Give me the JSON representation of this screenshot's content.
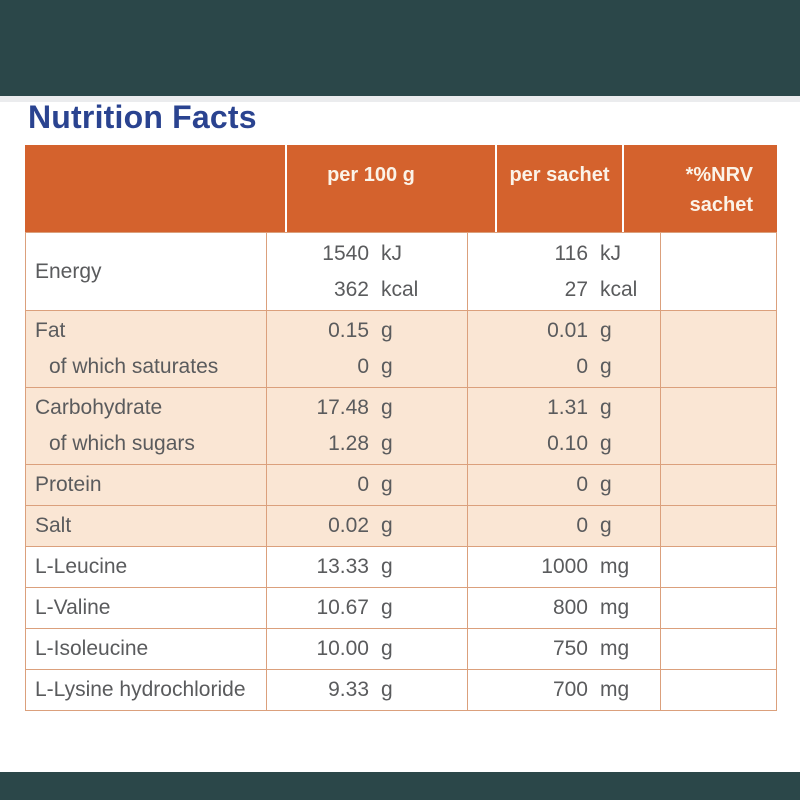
{
  "title": "Nutrition Facts",
  "colors": {
    "top_bottom_band": "#2b4749",
    "header_bg": "#d4622d",
    "header_text": "#fbf3e8",
    "shaded_row_bg": "#fae6d4",
    "table_border": "#dba07c",
    "body_text": "#5a5b5d",
    "title_text": "#2a4390"
  },
  "table": {
    "header": {
      "col_label": "",
      "col_per_100g": "per 100 g",
      "col_per_sachet": "per sachet",
      "col_nrv_line1": "*%NRV",
      "col_nrv_line2": "sachet"
    },
    "nrv_value": "",
    "rows": [
      {
        "label": "Energy",
        "sublabel": "",
        "shaded": false,
        "lines": [
          {
            "per100g_value": "1540",
            "per100g_unit": "kJ",
            "sachet_value": "116",
            "sachet_unit": "kJ"
          },
          {
            "per100g_value": "362",
            "per100g_unit": "kcal",
            "sachet_value": "27",
            "sachet_unit": "kcal"
          }
        ]
      },
      {
        "label": "Fat",
        "sublabel": "of which saturates",
        "shaded": true,
        "lines": [
          {
            "per100g_value": "0.15",
            "per100g_unit": "g",
            "sachet_value": "0.01",
            "sachet_unit": "g"
          },
          {
            "per100g_value": "0",
            "per100g_unit": "g",
            "sachet_value": "0",
            "sachet_unit": "g"
          }
        ]
      },
      {
        "label": "Carbohydrate",
        "sublabel": "of which sugars",
        "shaded": true,
        "lines": [
          {
            "per100g_value": "17.48",
            "per100g_unit": "g",
            "sachet_value": "1.31",
            "sachet_unit": "g"
          },
          {
            "per100g_value": "1.28",
            "per100g_unit": "g",
            "sachet_value": "0.10",
            "sachet_unit": "g"
          }
        ]
      },
      {
        "label": "Protein",
        "sublabel": "",
        "shaded": true,
        "lines": [
          {
            "per100g_value": "0",
            "per100g_unit": "g",
            "sachet_value": "0",
            "sachet_unit": "g"
          }
        ]
      },
      {
        "label": "Salt",
        "sublabel": "",
        "shaded": true,
        "lines": [
          {
            "per100g_value": "0.02",
            "per100g_unit": "g",
            "sachet_value": "0",
            "sachet_unit": "g"
          }
        ]
      },
      {
        "label": "L-Leucine",
        "sublabel": "",
        "shaded": false,
        "lines": [
          {
            "per100g_value": "13.33",
            "per100g_unit": "g",
            "sachet_value": "1000",
            "sachet_unit": "mg"
          }
        ]
      },
      {
        "label": "L-Valine",
        "sublabel": "",
        "shaded": false,
        "lines": [
          {
            "per100g_value": "10.67",
            "per100g_unit": "g",
            "sachet_value": "800",
            "sachet_unit": "mg"
          }
        ]
      },
      {
        "label": "L-Isoleucine",
        "sublabel": "",
        "shaded": false,
        "lines": [
          {
            "per100g_value": "10.00",
            "per100g_unit": "g",
            "sachet_value": "750",
            "sachet_unit": "mg"
          }
        ]
      },
      {
        "label": "L-Lysine hydrochloride",
        "sublabel": "",
        "shaded": false,
        "lines": [
          {
            "per100g_value": "9.33",
            "per100g_unit": "g",
            "sachet_value": "700",
            "sachet_unit": "mg"
          }
        ]
      }
    ]
  }
}
